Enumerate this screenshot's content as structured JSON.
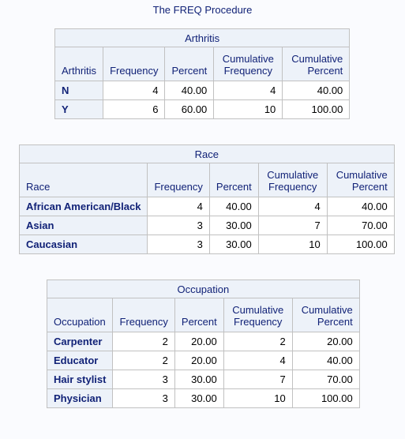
{
  "procedure_title": "The FREQ Procedure",
  "tables": [
    {
      "caption": "Arthritis",
      "columns": [
        "Arthritis",
        "Frequency",
        "Percent",
        "Cumulative Frequency",
        "Cumulative Percent"
      ],
      "rows": [
        [
          "N",
          "4",
          "40.00",
          "4",
          "40.00"
        ],
        [
          "Y",
          "6",
          "60.00",
          "10",
          "100.00"
        ]
      ]
    },
    {
      "caption": "Race",
      "columns": [
        "Race",
        "Frequency",
        "Percent",
        "Cumulative Frequency",
        "Cumulative Percent"
      ],
      "rows": [
        [
          "African American/Black",
          "4",
          "40.00",
          "4",
          "40.00"
        ],
        [
          "Asian",
          "3",
          "30.00",
          "7",
          "70.00"
        ],
        [
          "Caucasian",
          "3",
          "30.00",
          "10",
          "100.00"
        ]
      ]
    },
    {
      "caption": "Occupation",
      "columns": [
        "Occupation",
        "Frequency",
        "Percent",
        "Cumulative Frequency",
        "Cumulative Percent"
      ],
      "rows": [
        [
          "Carpenter",
          "2",
          "20.00",
          "2",
          "20.00"
        ],
        [
          "Educator",
          "2",
          "20.00",
          "4",
          "40.00"
        ],
        [
          "Hair stylist",
          "3",
          "30.00",
          "7",
          "70.00"
        ],
        [
          "Physician",
          "3",
          "30.00",
          "10",
          "100.00"
        ]
      ]
    }
  ]
}
